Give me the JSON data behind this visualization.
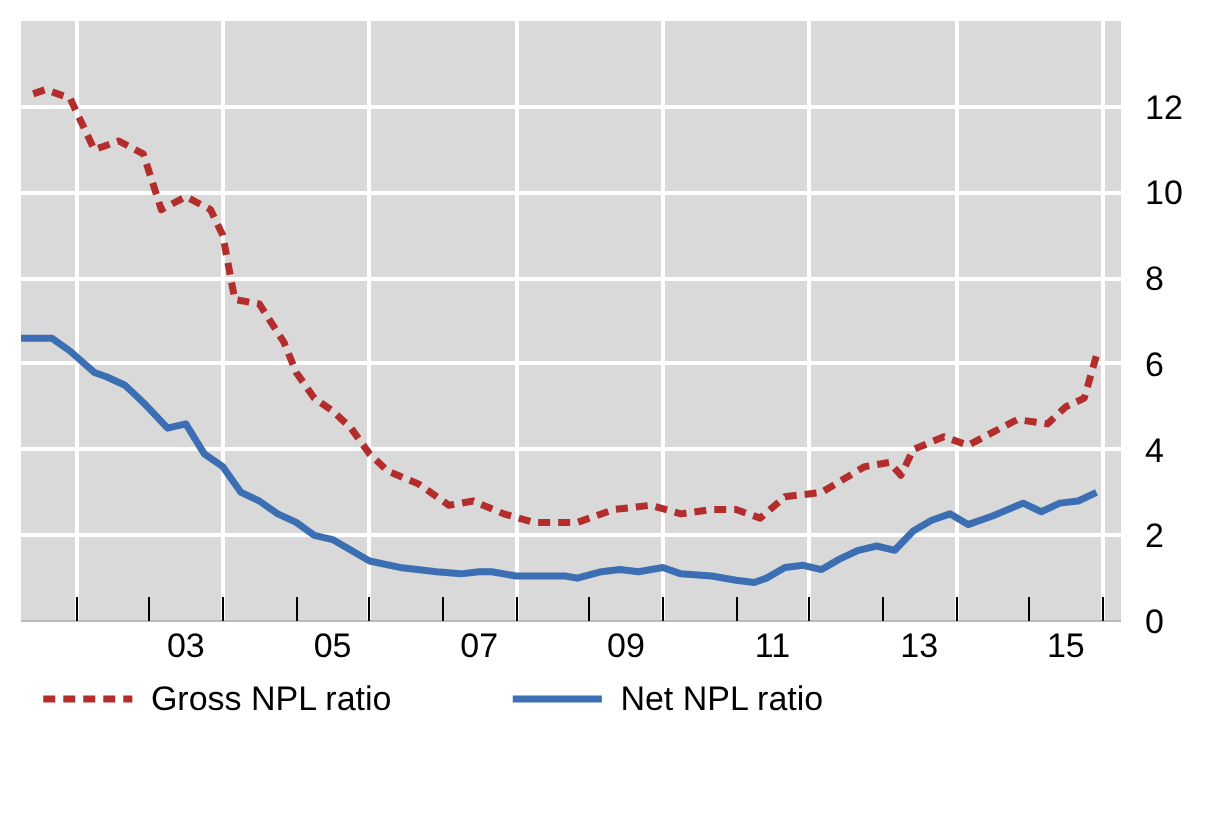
{
  "chart_data": {
    "type": "line",
    "xlim": [
      "2001-04",
      "2016-04"
    ],
    "ylim": [
      0,
      14
    ],
    "yticks": [
      0,
      2,
      4,
      6,
      8,
      10,
      12
    ],
    "xticks": [
      {
        "value": "2002-01",
        "label": null
      },
      {
        "value": "2003-01",
        "label": null
      },
      {
        "value": "2004-01",
        "label": null
      },
      {
        "value": "2005-01",
        "label": null
      },
      {
        "value": "2006-01",
        "label": null
      },
      {
        "value": "2007-01",
        "label": null
      },
      {
        "value": "2008-01",
        "label": null
      },
      {
        "value": "2009-01",
        "label": null
      },
      {
        "value": "2010-01",
        "label": null
      },
      {
        "value": "2011-01",
        "label": null
      },
      {
        "value": "2012-01",
        "label": null
      },
      {
        "value": "2013-01",
        "label": null
      },
      {
        "value": "2014-01",
        "label": null
      },
      {
        "value": "2015-01",
        "label": null
      },
      {
        "value": "2016-01",
        "label": null
      },
      {
        "value": "2003-07",
        "label": "03"
      },
      {
        "value": "2005-07",
        "label": "05"
      },
      {
        "value": "2007-07",
        "label": "07"
      },
      {
        "value": "2009-07",
        "label": "09"
      },
      {
        "value": "2011-07",
        "label": "11"
      },
      {
        "value": "2013-07",
        "label": "13"
      },
      {
        "value": "2015-07",
        "label": "15"
      }
    ],
    "grid": true,
    "legend": "bottom",
    "series": [
      {
        "name": "Gross NPL ratio",
        "color": "#b22d2b",
        "line_style": "dashed",
        "x": [
          "2001-06",
          "2001-08",
          "2001-10",
          "2001-12",
          "2002-04",
          "2002-08",
          "2002-12",
          "2003-03",
          "2003-07",
          "2003-11",
          "2004-01",
          "2004-03",
          "2004-07",
          "2004-11",
          "2005-01",
          "2005-04",
          "2005-07",
          "2005-10",
          "2006-01",
          "2006-04",
          "2006-09",
          "2007-02",
          "2007-06",
          "2007-11",
          "2008-04",
          "2008-09",
          "2008-11",
          "2009-05",
          "2009-11",
          "2010-04",
          "2010-09",
          "2011-01",
          "2011-05",
          "2011-09",
          "2012-03",
          "2012-10",
          "2013-02",
          "2013-04",
          "2013-06",
          "2013-11",
          "2014-03",
          "2014-07",
          "2014-11",
          "2015-04",
          "2015-07",
          "2015-10",
          "2015-12"
        ],
        "values": [
          12.3,
          12.4,
          12.3,
          12.2,
          11.0,
          11.2,
          10.9,
          9.6,
          9.9,
          9.6,
          9.0,
          7.5,
          7.4,
          6.5,
          5.8,
          5.2,
          4.9,
          4.5,
          3.9,
          3.5,
          3.2,
          2.7,
          2.8,
          2.5,
          2.3,
          2.3,
          2.3,
          2.6,
          2.7,
          2.5,
          2.6,
          2.6,
          2.4,
          2.9,
          3.0,
          3.6,
          3.7,
          3.4,
          4.0,
          4.3,
          4.1,
          4.4,
          4.7,
          4.6,
          5.0,
          5.2,
          6.2
        ]
      },
      {
        "name": "Net NPL ratio",
        "color": "#3c6eb4",
        "line_style": "solid",
        "x": [
          "2001-04",
          "2001-09",
          "2001-12",
          "2002-04",
          "2002-06",
          "2002-09",
          "2002-12",
          "2003-04",
          "2003-07",
          "2003-10",
          "2004-01",
          "2004-04",
          "2004-07",
          "2004-10",
          "2005-01",
          "2005-04",
          "2005-07",
          "2006-01",
          "2006-06",
          "2006-12",
          "2007-04",
          "2007-07",
          "2007-09",
          "2008-01",
          "2008-09",
          "2008-11",
          "2009-03",
          "2009-06",
          "2009-09",
          "2010-01",
          "2010-04",
          "2010-09",
          "2011-01",
          "2011-04",
          "2011-06",
          "2011-09",
          "2011-12",
          "2012-03",
          "2012-06",
          "2012-09",
          "2012-12",
          "2013-03",
          "2013-06",
          "2013-09",
          "2013-12",
          "2014-03",
          "2014-07",
          "2014-12",
          "2015-03",
          "2015-06",
          "2015-09",
          "2015-12"
        ],
        "values": [
          6.6,
          6.6,
          6.3,
          5.8,
          5.7,
          5.5,
          5.1,
          4.5,
          4.6,
          3.9,
          3.6,
          3.0,
          2.8,
          2.5,
          2.3,
          2.0,
          1.9,
          1.4,
          1.25,
          1.15,
          1.1,
          1.15,
          1.15,
          1.05,
          1.05,
          1.0,
          1.15,
          1.2,
          1.15,
          1.25,
          1.1,
          1.05,
          0.95,
          0.9,
          1.0,
          1.25,
          1.3,
          1.2,
          1.45,
          1.65,
          1.75,
          1.65,
          2.1,
          2.35,
          2.5,
          2.25,
          2.45,
          2.75,
          2.55,
          2.75,
          2.8,
          3.0
        ]
      }
    ]
  }
}
